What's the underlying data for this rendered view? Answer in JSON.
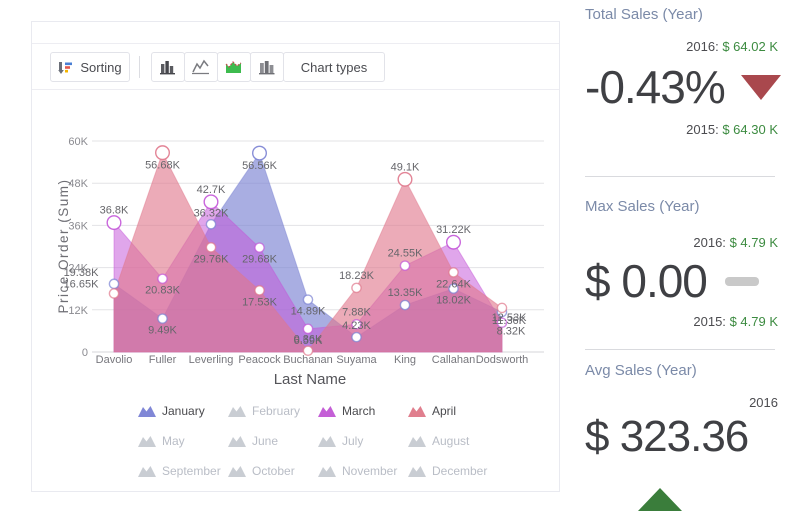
{
  "toolbar": {
    "sorting_label": "Sorting",
    "chart_types_label": "Chart types",
    "icons": [
      "sorting-icon",
      "column-chart-icon",
      "line-chart-icon",
      "area-chart-icon",
      "stacked-column-chart-icon"
    ],
    "active_chart_type": "area"
  },
  "chart_data": {
    "type": "area",
    "xlabel": "Last Name",
    "ylabel": "Price Order (Sum)",
    "ylim": [
      0,
      60000
    ],
    "grid": true,
    "yticks": [
      {
        "label": "0",
        "v": 0
      },
      {
        "label": "12K",
        "v": 12
      },
      {
        "label": "24K",
        "v": 24
      },
      {
        "label": "36K",
        "v": 36
      },
      {
        "label": "48K",
        "v": 48
      },
      {
        "label": "60K",
        "v": 60
      }
    ],
    "categories": [
      "Davolio",
      "Fuller",
      "Leverling",
      "Peacock",
      "Buchanan",
      "Suyama",
      "King",
      "Callahan",
      "Dodsworth"
    ],
    "series": [
      {
        "name": "January",
        "color": "#7b82d3",
        "values": [
          19.38,
          9.49,
          36.32,
          56.56,
          14.89,
          4.23,
          13.35,
          18.02,
          11.36
        ],
        "labels": [
          "19.38K",
          "9.49K",
          "36.32K",
          "56.56K",
          "14.89K",
          "4.23K",
          "13.35K",
          "18.02K",
          "11.36K"
        ]
      },
      {
        "name": "March",
        "color": "#c355d8",
        "values": [
          36.8,
          20.83,
          42.7,
          29.68,
          6.59,
          7.88,
          24.55,
          31.22,
          8.32
        ],
        "labels": [
          "36.8K",
          "20.83K",
          "42.7K",
          "29.68K",
          "6.59K",
          "7.88K",
          "24.55K",
          "31.22K",
          "8.32K"
        ]
      },
      {
        "name": "April",
        "color": "#e0788c",
        "values": [
          16.65,
          56.68,
          29.76,
          17.53,
          0.36,
          18.23,
          49.1,
          22.64,
          12.53
        ],
        "labels": [
          "16.65K",
          "56.68K",
          "29.76K",
          "17.53K",
          "0.36K",
          "18.23K",
          "49.1K",
          "22.64K",
          "12.53K"
        ]
      }
    ],
    "legend_position": "bottom",
    "legend": {
      "months": [
        {
          "label": "January",
          "active": true,
          "color": "#8087d6"
        },
        {
          "label": "February",
          "active": false,
          "color": "#c9cdd3"
        },
        {
          "label": "March",
          "active": true,
          "color": "#c45fd6"
        },
        {
          "label": "April",
          "active": true,
          "color": "#e07f8e"
        },
        {
          "label": "May",
          "active": false,
          "color": "#c9cdd3"
        },
        {
          "label": "June",
          "active": false,
          "color": "#c9cdd3"
        },
        {
          "label": "July",
          "active": false,
          "color": "#c9cdd3"
        },
        {
          "label": "August",
          "active": false,
          "color": "#c9cdd3"
        },
        {
          "label": "September",
          "active": false,
          "color": "#c9cdd3"
        },
        {
          "label": "October",
          "active": false,
          "color": "#c9cdd3"
        },
        {
          "label": "November",
          "active": false,
          "color": "#c9cdd3"
        },
        {
          "label": "December",
          "active": false,
          "color": "#c9cdd3"
        }
      ]
    }
  },
  "kpis": [
    {
      "title": "Total Sales (Year)",
      "top_label": "2016:",
      "top_value": "$ 64.02 K",
      "big": "-0.43%",
      "indicator": "down",
      "bottom_label": "2015:",
      "bottom_value": "$ 64.30 K"
    },
    {
      "title": "Max Sales (Year)",
      "top_label": "2016:",
      "top_value": "$ 4.79 K",
      "big": "$ 0.00",
      "indicator": "flat",
      "bottom_label": "2015:",
      "bottom_value": "$ 4.79 K"
    },
    {
      "title": "Avg Sales (Year)",
      "top_label": "2016",
      "top_value": "",
      "big": "$ 323.36",
      "indicator": "up",
      "bottom_label": "",
      "bottom_value": ""
    }
  ],
  "colors": {
    "kpi_title": "#7b8aa8",
    "kpi_value_green": "#3c8b40",
    "indicator_down_red": "#a9484d",
    "indicator_up_green": "#3a7d3b",
    "indicator_flat_gray": "#c9c9c9",
    "series_january": "#7b82d3",
    "series_march": "#c355d8",
    "series_april": "#e0788c",
    "chart_type_active_green": "#3dbb4e"
  }
}
